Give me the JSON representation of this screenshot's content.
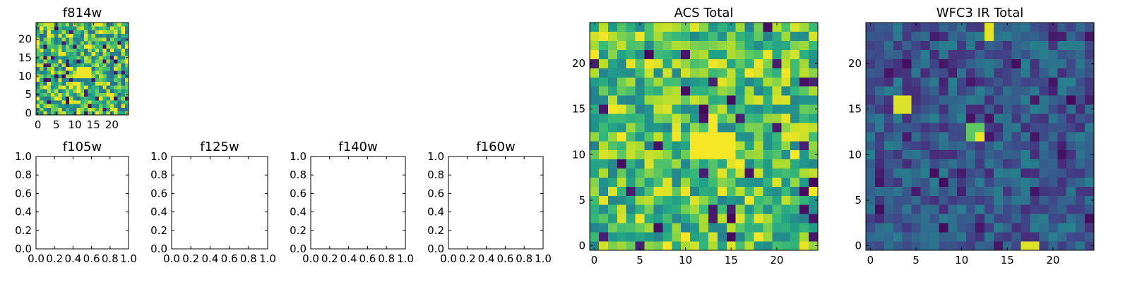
{
  "chart_data": [
    {
      "id": "f814w",
      "type": "heatmap",
      "title": "f814w",
      "colormap": "viridis",
      "grid_size": 25,
      "xlim": [
        -0.5,
        24.5
      ],
      "ylim": [
        -0.5,
        24.5
      ],
      "x_ticks": [
        0,
        5,
        10,
        15,
        20
      ],
      "y_ticks": [
        0,
        5,
        10,
        15,
        20
      ],
      "seed": 814,
      "value_mean": 0.68,
      "value_spread": 0.34,
      "dark_fraction": 0.05,
      "hotspots": [
        {
          "row": 10,
          "col": 11,
          "w": 4,
          "h": 3,
          "value": 0.98
        }
      ]
    },
    {
      "id": "f105w",
      "type": "empty",
      "title": "f105w",
      "xlim": [
        0,
        1
      ],
      "ylim": [
        0,
        1
      ],
      "x_ticks": [
        "0.0",
        "0.2",
        "0.4",
        "0.6",
        "0.8",
        "1.0"
      ],
      "y_ticks": [
        "0.0",
        "0.2",
        "0.4",
        "0.6",
        "0.8",
        "1.0"
      ]
    },
    {
      "id": "f125w",
      "type": "empty",
      "title": "f125w",
      "xlim": [
        0,
        1
      ],
      "ylim": [
        0,
        1
      ],
      "x_ticks": [
        "0.0",
        "0.2",
        "0.4",
        "0.6",
        "0.8",
        "1.0"
      ],
      "y_ticks": [
        "0.0",
        "0.2",
        "0.4",
        "0.6",
        "0.8",
        "1.0"
      ]
    },
    {
      "id": "f140w",
      "type": "empty",
      "title": "f140w",
      "xlim": [
        0,
        1
      ],
      "ylim": [
        0,
        1
      ],
      "x_ticks": [
        "0.0",
        "0.2",
        "0.4",
        "0.6",
        "0.8",
        "1.0"
      ],
      "y_ticks": [
        "0.0",
        "0.2",
        "0.4",
        "0.6",
        "0.8",
        "1.0"
      ]
    },
    {
      "id": "f160w",
      "type": "empty",
      "title": "f160w",
      "xlim": [
        0,
        1
      ],
      "ylim": [
        0,
        1
      ],
      "x_ticks": [
        "0.0",
        "0.2",
        "0.4",
        "0.6",
        "0.8",
        "1.0"
      ],
      "y_ticks": [
        "0.0",
        "0.2",
        "0.4",
        "0.6",
        "0.8",
        "1.0"
      ]
    },
    {
      "id": "acs-total",
      "type": "heatmap",
      "title": "ACS Total",
      "colormap": "viridis",
      "grid_size": 25,
      "xlim": [
        -0.5,
        24.5
      ],
      "ylim": [
        -0.5,
        24.5
      ],
      "x_ticks": [
        0,
        5,
        10,
        15,
        20
      ],
      "y_ticks": [
        0,
        5,
        10,
        15,
        20
      ],
      "seed": 2017,
      "value_mean": 0.72,
      "value_spread": 0.28,
      "dark_fraction": 0.04,
      "hotspots": [
        {
          "row": 10,
          "col": 11,
          "w": 5,
          "h": 3,
          "value": 0.99
        }
      ]
    },
    {
      "id": "wfc3-ir-total",
      "type": "heatmap",
      "title": "WFC3 IR Total",
      "colormap": "viridis",
      "grid_size": 25,
      "xlim": [
        -0.5,
        24.5
      ],
      "ylim": [
        -0.5,
        24.5
      ],
      "x_ticks": [
        0,
        5,
        10,
        15,
        20
      ],
      "y_ticks": [
        0,
        5,
        10,
        15,
        20
      ],
      "seed": 3021,
      "value_mean": 0.28,
      "value_spread": 0.16,
      "dark_fraction": 0.08,
      "hotspots": [
        {
          "row": 23,
          "col": 13,
          "w": 1,
          "h": 2,
          "value": 0.96
        },
        {
          "row": 15,
          "col": 3,
          "w": 2,
          "h": 2,
          "value": 0.95
        },
        {
          "row": 12,
          "col": 11,
          "w": 2,
          "h": 2,
          "value": 0.75
        },
        {
          "row": 12,
          "col": 12,
          "w": 1,
          "h": 1,
          "value": 0.97
        },
        {
          "row": 0,
          "col": 17,
          "w": 2,
          "h": 1,
          "value": 0.95
        }
      ]
    }
  ]
}
